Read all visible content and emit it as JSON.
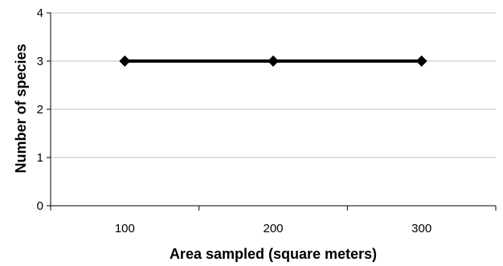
{
  "chart_data": {
    "type": "line",
    "x": [
      100,
      200,
      300
    ],
    "y_values": [
      3,
      3,
      3
    ],
    "x_categories": [
      "100",
      "200",
      "300"
    ],
    "xlabel": "Area sampled (square meters)",
    "ylabel": "Number of species",
    "ylim": [
      0,
      4
    ],
    "y_ticks": [
      "0",
      "1",
      "2",
      "3",
      "4"
    ],
    "grid": "horizontal",
    "marker": "diamond",
    "line_color": "#000000",
    "grid_color": "#bfbfbf"
  }
}
